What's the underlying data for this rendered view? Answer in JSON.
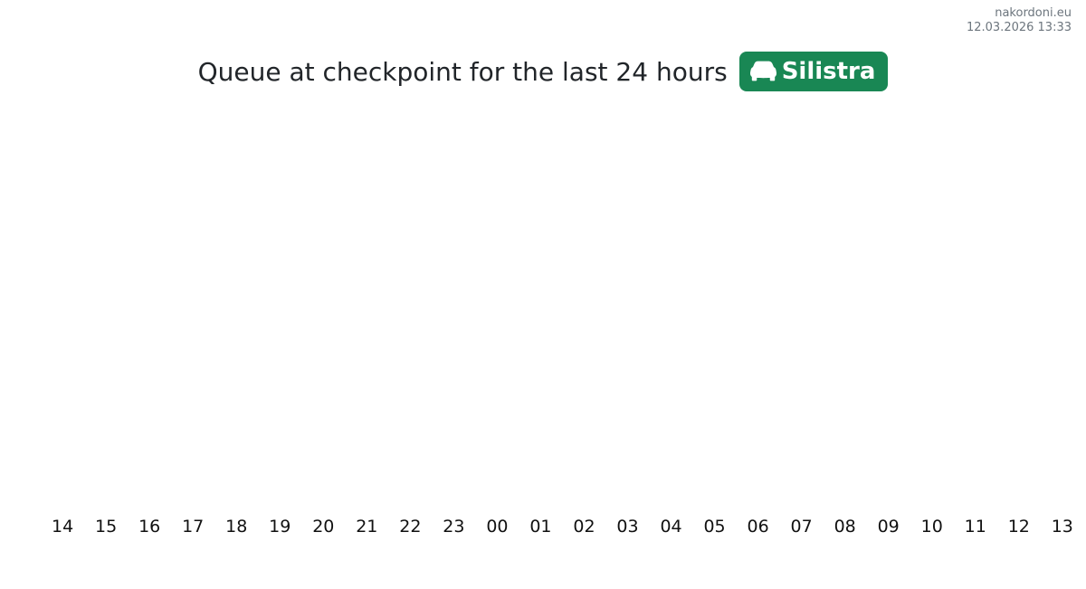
{
  "site": {
    "name": "nakordoni.eu",
    "timestamp": "12.03.2026 13:33"
  },
  "header": {
    "title": "Queue at checkpoint for the last 24 hours",
    "checkpoint": "Silistra",
    "badge_color": "#198754",
    "badge_icon": "car-front-icon"
  },
  "chart_data": {
    "type": "bar",
    "title": "Queue at checkpoint for the last 24 hours",
    "subtitle": "Silistra",
    "categories": [
      "14",
      "15",
      "16",
      "17",
      "18",
      "19",
      "20",
      "21",
      "22",
      "23",
      "00",
      "01",
      "02",
      "03",
      "04",
      "05",
      "06",
      "07",
      "08",
      "09",
      "10",
      "11",
      "12",
      "13"
    ],
    "values": [
      0,
      0,
      0,
      0,
      0,
      0,
      0,
      0,
      0,
      0,
      0,
      0,
      0,
      0,
      0,
      0,
      0,
      0,
      0,
      0,
      0,
      0,
      0,
      0
    ],
    "xlabel": "",
    "ylabel": "",
    "grid": false,
    "legend": false,
    "y_axis_visible": false,
    "bar_color": "#198754"
  }
}
